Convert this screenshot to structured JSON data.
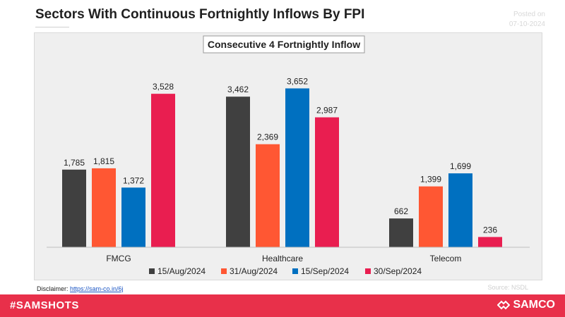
{
  "header": {
    "title": "Sectors With Continuous Fortnightly Inflows By FPI",
    "posted_label": "Posted on",
    "posted_date": "07-10-2024"
  },
  "footer": {
    "disclaimer_label": "Disclaimer:",
    "disclaimer_link": "https://sam-co.in/6j",
    "source": "Source: NSDL",
    "hashtag": "#SAMSHOTS",
    "brand": "SAMCO"
  },
  "chart_data": {
    "type": "bar",
    "title": "Consecutive 4 Fortnightly Inflow",
    "categories": [
      "FMCG",
      "Healthcare",
      "Telecom"
    ],
    "series": [
      {
        "name": "15/Aug/2024",
        "values": [
          1785,
          3462,
          662
        ],
        "color": "#404040"
      },
      {
        "name": "31/Aug/2024",
        "values": [
          1815,
          2369,
          1399
        ],
        "color": "#ff5733"
      },
      {
        "name": "15/Sep/2024",
        "values": [
          1372,
          3652,
          1699
        ],
        "color": "#0070c0"
      },
      {
        "name": "30/Sep/2024",
        "values": [
          3528,
          2987,
          236
        ],
        "color": "#e91e50"
      }
    ],
    "value_labels": [
      [
        "1,785",
        "3,462",
        "662"
      ],
      [
        "1,815",
        "2,369",
        "1,399"
      ],
      [
        "1,372",
        "3,652",
        "1,699"
      ],
      [
        "3,528",
        "2,987",
        "236"
      ]
    ],
    "ylim": [
      0,
      4000
    ],
    "grid": false,
    "legend_position": "bottom"
  }
}
